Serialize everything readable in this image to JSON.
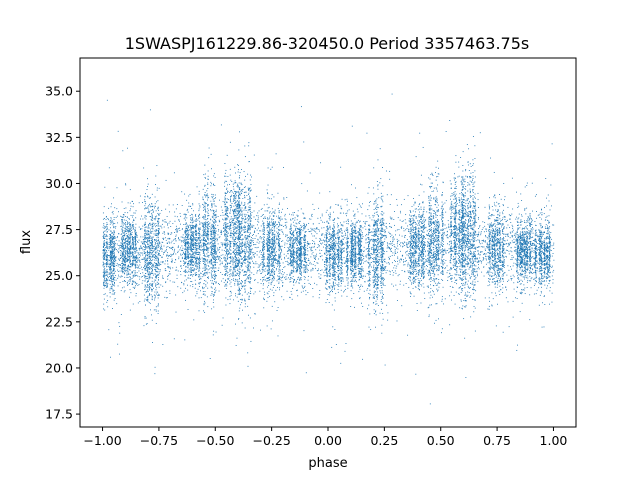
{
  "chart_data": {
    "type": "scatter",
    "title": "1SWASPJ161229.86-320450.0 Period 3357463.75s",
    "xlabel": "phase",
    "ylabel": "flux",
    "xlim": [
      -1.1,
      1.1
    ],
    "ylim": [
      16.8,
      36.8
    ],
    "xticks": [
      -1.0,
      -0.75,
      -0.5,
      -0.25,
      0.0,
      0.25,
      0.5,
      0.75,
      1.0
    ],
    "xtick_labels": [
      "−1.00",
      "−0.75",
      "−0.50",
      "−0.25",
      "0.00",
      "0.25",
      "0.50",
      "0.75",
      "1.00"
    ],
    "yticks": [
      17.5,
      20.0,
      22.5,
      25.0,
      27.5,
      30.0,
      32.5,
      35.0
    ],
    "ytick_labels": [
      "17.5",
      "20.0",
      "22.5",
      "25.0",
      "27.5",
      "30.0",
      "32.5",
      "35.0"
    ],
    "grid": false,
    "legend": "none",
    "marker_color": "#1f77b4",
    "series": [
      {
        "x_range": [
          -1.0,
          1.0
        ],
        "typical_flux": 26.5,
        "clusters": [
          {
            "phase": -0.97,
            "flux_range": [
              22.0,
              28.5
            ]
          },
          {
            "phase": -0.88,
            "flux_range": [
              23.5,
              29.0
            ]
          },
          {
            "phase": -0.78,
            "flux_range": [
              21.0,
              30.5
            ]
          },
          {
            "phase": -0.6,
            "flux_range": [
              23.5,
              30.0
            ]
          },
          {
            "phase": -0.52,
            "flux_range": [
              23.0,
              32.5
            ]
          },
          {
            "phase": -0.42,
            "flux_range": [
              23.5,
              33.5
            ]
          },
          {
            "phase": -0.37,
            "flux_range": [
              22.5,
              34.0
            ]
          },
          {
            "phase": -0.25,
            "flux_range": [
              23.0,
              30.0
            ]
          },
          {
            "phase": -0.13,
            "flux_range": [
              23.5,
              28.5
            ]
          },
          {
            "phase": 0.03,
            "flux_range": [
              22.5,
              28.5
            ]
          },
          {
            "phase": 0.12,
            "flux_range": [
              23.0,
              28.5
            ]
          },
          {
            "phase": 0.22,
            "flux_range": [
              21.0,
              30.5
            ]
          },
          {
            "phase": 0.4,
            "flux_range": [
              23.5,
              30.0
            ]
          },
          {
            "phase": 0.48,
            "flux_range": [
              23.0,
              32.5
            ]
          },
          {
            "phase": 0.58,
            "flux_range": [
              23.5,
              33.5
            ]
          },
          {
            "phase": 0.63,
            "flux_range": [
              22.5,
              34.0
            ]
          },
          {
            "phase": 0.75,
            "flux_range": [
              23.0,
              30.0
            ]
          },
          {
            "phase": 0.87,
            "flux_range": [
              23.5,
              28.5
            ]
          },
          {
            "phase": 0.96,
            "flux_range": [
              23.0,
              28.0
            ]
          }
        ]
      }
    ]
  }
}
